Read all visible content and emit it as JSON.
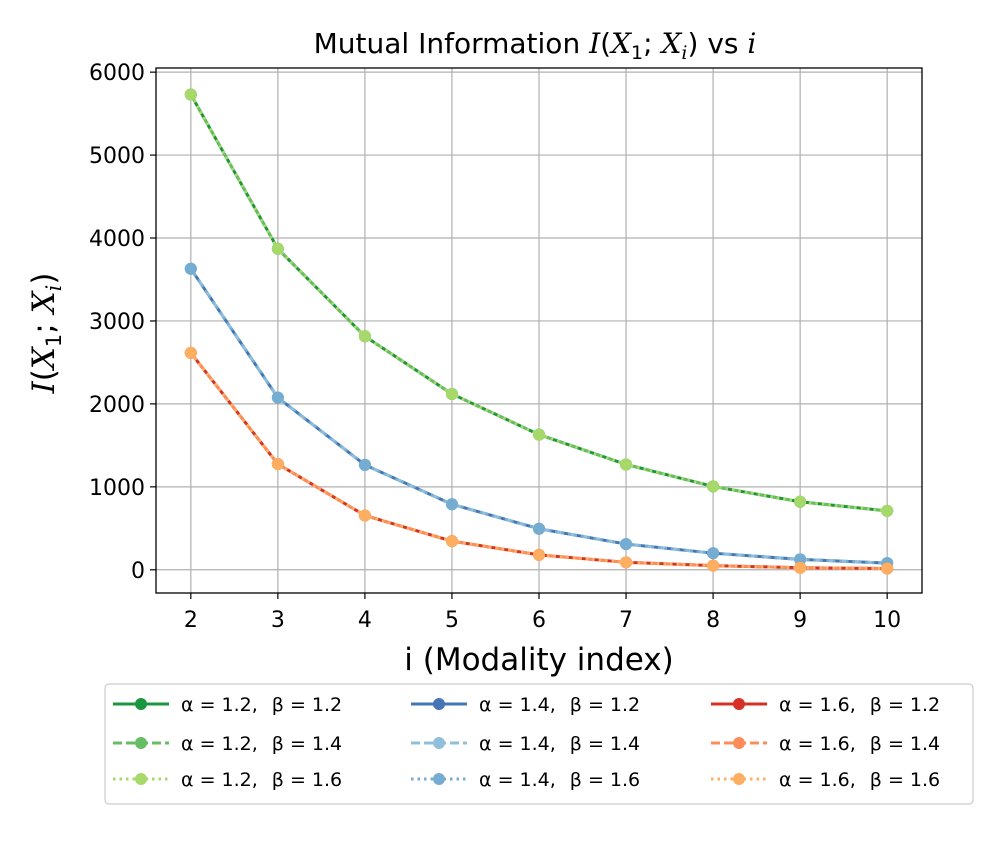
{
  "chart_data": {
    "type": "line",
    "title": {
      "prefix": "Mutual Information ",
      "math_I": "I",
      "math_open": "(",
      "math_X1": "X",
      "math_sub1": "1",
      "math_sep": "; ",
      "math_Xi": "X",
      "math_subi": "i",
      "math_close": ")",
      "middle": " vs ",
      "math_i": "i"
    },
    "xlabel": "i (Modality index)",
    "ylabel": {
      "I": "I",
      "open": "(",
      "X1": "X",
      "sub1": "1",
      "sep": "; ",
      "Xi": "X",
      "subi": "i",
      "close": ")"
    },
    "x": [
      2,
      3,
      4,
      5,
      6,
      7,
      8,
      9,
      10
    ],
    "xlim": [
      1.6,
      10.4
    ],
    "ylim": [
      -280,
      6050
    ],
    "xticks": [
      "2",
      "3",
      "4",
      "5",
      "6",
      "7",
      "8",
      "9",
      "10"
    ],
    "yticks": [
      0,
      1000,
      2000,
      3000,
      4000,
      5000,
      6000
    ],
    "ytick_labels": [
      "0",
      "1000",
      "2000",
      "3000",
      "4000",
      "5000",
      "6000"
    ],
    "grid": true,
    "legend_position": "below",
    "series": [
      {
        "name": "α = 1.2,  β = 1.2",
        "alpha_label": "α = 1.2,",
        "beta_label": "β = 1.2",
        "color": "#1a9641",
        "marker_color": "#1a9641",
        "linestyle": "solid",
        "values": [
          5730,
          3870,
          2815,
          2120,
          1630,
          1270,
          1005,
          820,
          710
        ]
      },
      {
        "name": "α = 1.2,  β = 1.4",
        "alpha_label": "α = 1.2,",
        "beta_label": "β = 1.4",
        "color": "#66bd63",
        "marker_color": "#66bd63",
        "linestyle": "dashed",
        "values": [
          5730,
          3870,
          2815,
          2120,
          1630,
          1270,
          1005,
          820,
          710
        ]
      },
      {
        "name": "α = 1.2,  β = 1.6",
        "alpha_label": "α = 1.2,",
        "beta_label": "β = 1.6",
        "color": "#a6d96a",
        "marker_color": "#a6d96a",
        "linestyle": "dotted",
        "values": [
          5730,
          3870,
          2815,
          2120,
          1630,
          1270,
          1005,
          820,
          710
        ]
      },
      {
        "name": "α = 1.4,  β = 1.2",
        "alpha_label": "α = 1.4,",
        "beta_label": "β = 1.2",
        "color": "#4575b4",
        "marker_color": "#4575b4",
        "linestyle": "solid",
        "values": [
          3630,
          2075,
          1265,
          790,
          495,
          310,
          200,
          125,
          80
        ]
      },
      {
        "name": "α = 1.4,  β = 1.4",
        "alpha_label": "α = 1.4,",
        "beta_label": "β = 1.4",
        "color": "#91bfdb",
        "marker_color": "#91bfdb",
        "linestyle": "dashed",
        "values": [
          3630,
          2075,
          1265,
          790,
          495,
          310,
          200,
          125,
          80
        ]
      },
      {
        "name": "α = 1.4,  β = 1.6",
        "alpha_label": "α = 1.4,",
        "beta_label": "β = 1.6",
        "color": "#74add1",
        "marker_color": "#74add1",
        "linestyle": "dotted",
        "values": [
          3630,
          2075,
          1265,
          790,
          495,
          310,
          200,
          125,
          80
        ]
      },
      {
        "name": "α = 1.6,  β = 1.2",
        "alpha_label": "α = 1.6,",
        "beta_label": "β = 1.2",
        "color": "#d73027",
        "marker_color": "#d73027",
        "linestyle": "solid",
        "values": [
          2615,
          1275,
          655,
          345,
          180,
          90,
          50,
          25,
          15
        ]
      },
      {
        "name": "α = 1.6,  β = 1.4",
        "alpha_label": "α = 1.6,",
        "beta_label": "β = 1.4",
        "color": "#fc8d59",
        "marker_color": "#fc8d59",
        "linestyle": "dashed",
        "values": [
          2615,
          1275,
          655,
          345,
          180,
          90,
          50,
          25,
          15
        ]
      },
      {
        "name": "α = 1.6,  β = 1.6",
        "alpha_label": "α = 1.6,",
        "beta_label": "β = 1.6",
        "color": "#fdae61",
        "marker_color": "#fdae61",
        "linestyle": "dotted",
        "values": [
          2615,
          1275,
          655,
          345,
          180,
          90,
          50,
          25,
          15
        ]
      }
    ]
  }
}
